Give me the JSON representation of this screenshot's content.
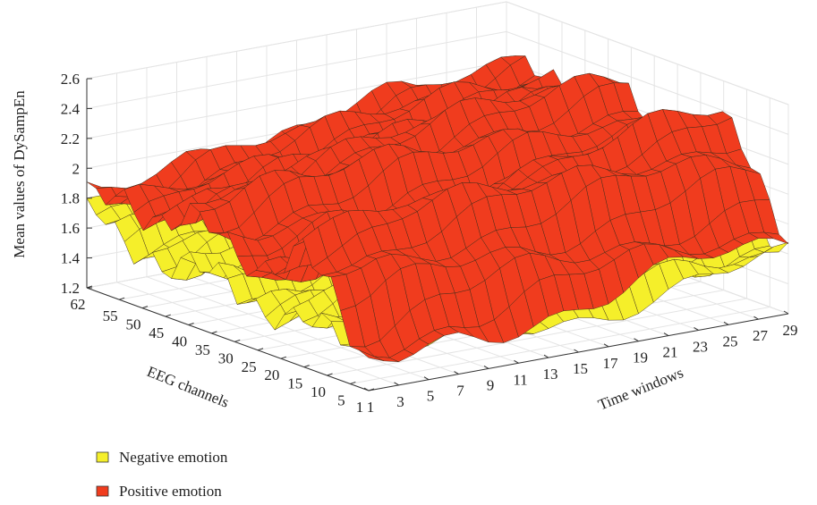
{
  "chart_data": {
    "type": "surface3d",
    "title": "",
    "zlabel": "Mean values of DySampEn",
    "xlabel": "Time windows",
    "ylabel": "EEG channels",
    "zlim": [
      1.2,
      2.6
    ],
    "z_ticks": [
      "1.2",
      "1.4",
      "1.6",
      "1.8",
      "2",
      "2.2",
      "2.4",
      "2.6"
    ],
    "time_ticks": [
      "1",
      "3",
      "5",
      "7",
      "9",
      "11",
      "13",
      "15",
      "17",
      "19",
      "21",
      "23",
      "25",
      "27",
      "29"
    ],
    "channel_ticks": [
      "1",
      "5",
      "10",
      "15",
      "20",
      "25",
      "30",
      "35",
      "40",
      "45",
      "50",
      "55",
      "62"
    ],
    "grid": true,
    "legend_position": "bottom-left",
    "series": [
      {
        "name": "Negative emotion",
        "color": "#f5ef2a",
        "approx_range": [
          1.35,
          1.8
        ],
        "channel_profile": [
          1.38,
          1.45,
          1.55,
          1.6,
          1.5,
          1.45,
          1.5,
          1.6,
          1.62,
          1.55,
          1.58,
          1.62,
          1.8
        ],
        "time_trend": [
          0.0,
          0.0,
          0.02,
          0.03,
          0.04,
          0.05,
          0.06,
          0.07,
          0.09,
          0.11,
          0.12,
          0.14,
          0.15,
          0.17,
          0.18
        ]
      },
      {
        "name": "Positive emotion",
        "color": "#f03c1e",
        "approx_range": [
          1.3,
          2.5
        ],
        "channel_profile": [
          1.33,
          1.55,
          1.9,
          2.05,
          1.8,
          1.65,
          1.75,
          1.95,
          2.0,
          1.85,
          1.8,
          1.85,
          1.8
        ],
        "time_trend": [
          0.0,
          0.0,
          0.05,
          0.1,
          0.12,
          0.15,
          0.18,
          0.2,
          0.22,
          0.25,
          0.28,
          0.3,
          0.32,
          0.34,
          0.35
        ]
      }
    ]
  }
}
